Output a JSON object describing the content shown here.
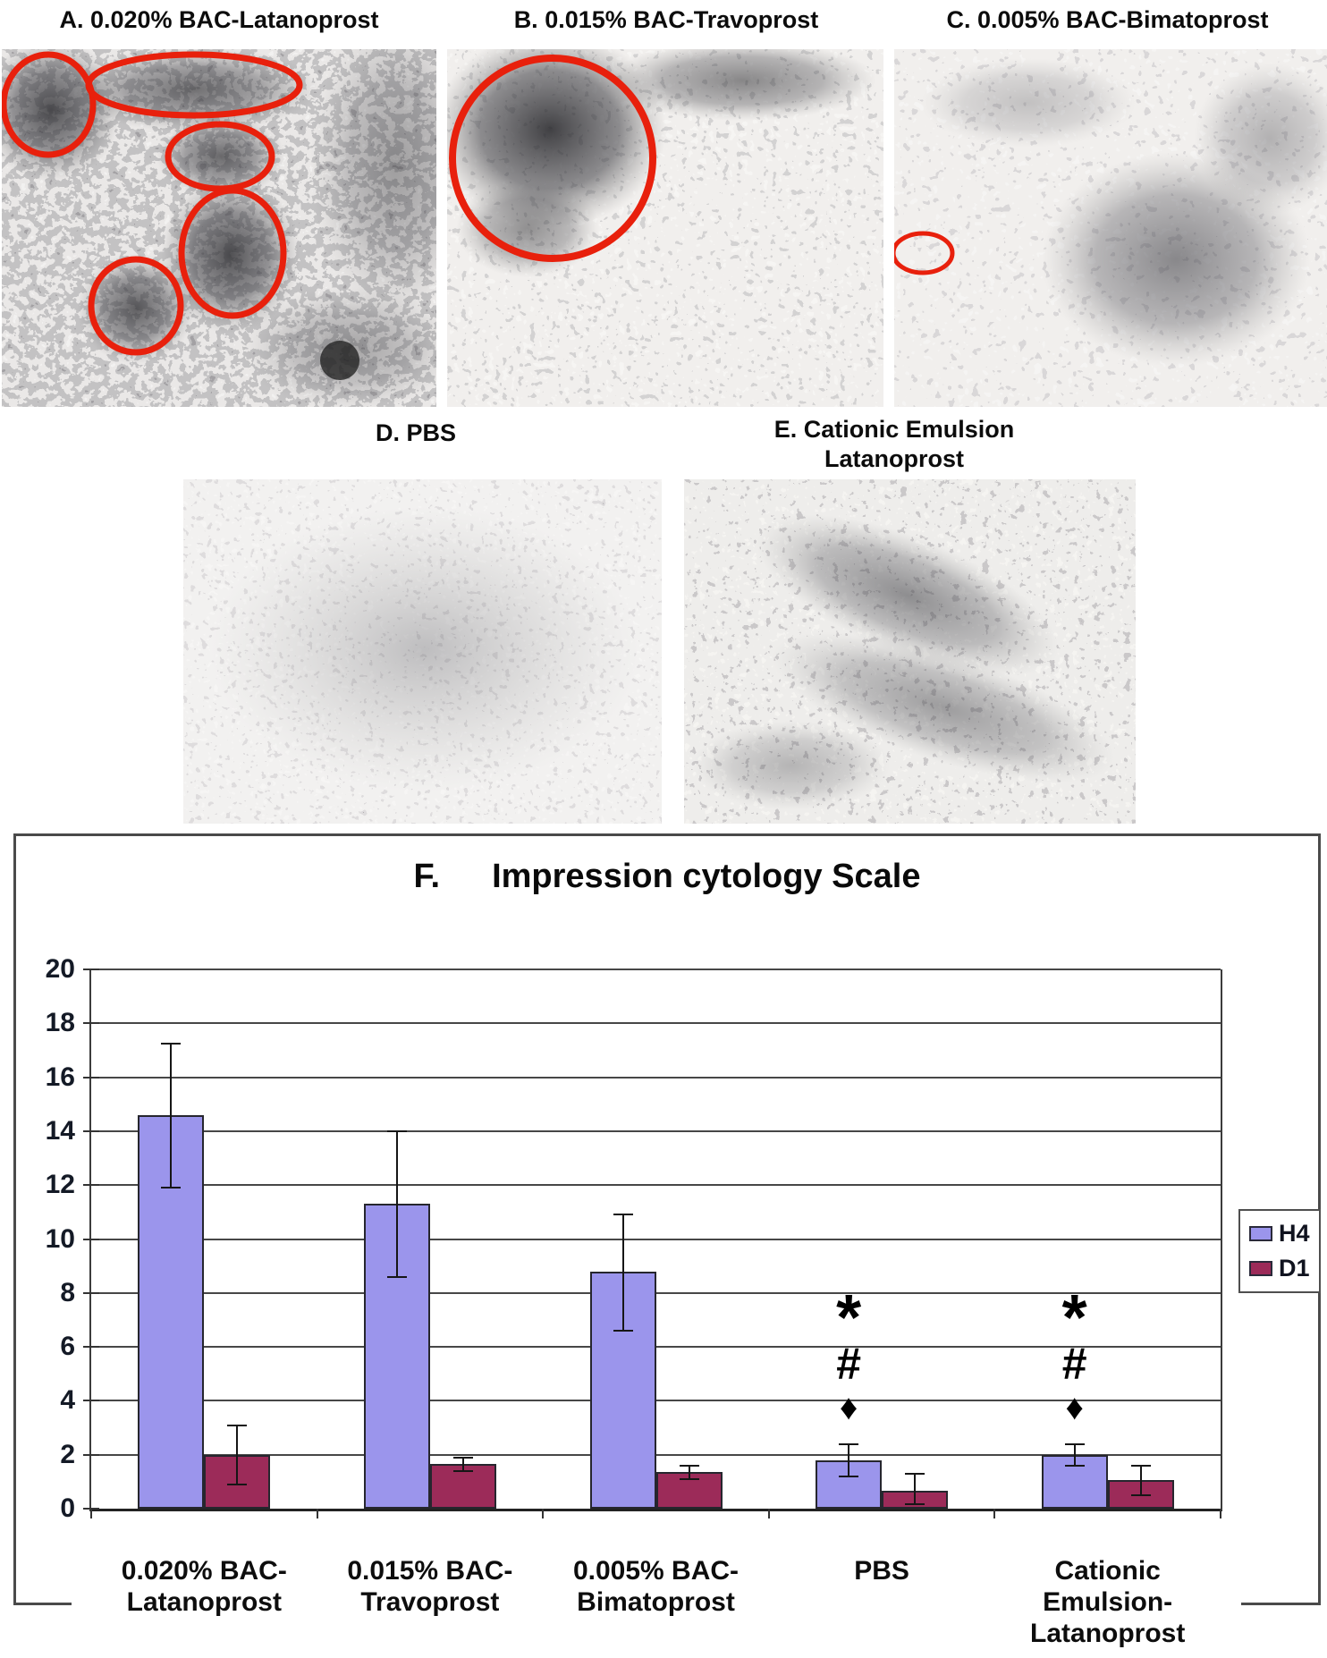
{
  "figure": {
    "panels": [
      {
        "id": "A",
        "title": "A. 0.020% BAC-Latanoprost",
        "red_circle_annotations": 5
      },
      {
        "id": "B",
        "title": "B. 0.015% BAC-Travoprost",
        "red_circle_annotations": 1
      },
      {
        "id": "C",
        "title": "C. 0.005% BAC-Bimatoprost",
        "red_circle_annotations": 1
      },
      {
        "id": "D",
        "title": "D. PBS",
        "red_circle_annotations": 0
      },
      {
        "id": "E",
        "title": "E. Cationic Emulsion\nLatanoprost",
        "red_circle_annotations": 0
      }
    ],
    "annotation_circle_color": "#E8200C"
  },
  "chart_data": {
    "type": "bar",
    "panel_label": "F.",
    "title": "Impression cytology Scale",
    "categories": [
      "0.020% BAC-\nLatanoprost",
      "0.015% BAC-\nTravoprost",
      "0.005% BAC-\nBimatoprost",
      "PBS",
      "Cationic\nEmulsion-\nLatanoprost"
    ],
    "series": [
      {
        "name": "H4",
        "color": "#9B95EC",
        "values": [
          14.6,
          11.3,
          8.8,
          1.8,
          2.0
        ],
        "error_low": [
          2.7,
          2.7,
          2.2,
          0.6,
          0.4
        ],
        "error_high": [
          2.65,
          2.7,
          2.1,
          0.6,
          0.4
        ]
      },
      {
        "name": "D1",
        "color": "#9C2B59",
        "values": [
          2.0,
          1.65,
          1.35,
          0.65,
          1.05
        ],
        "error_low": [
          1.1,
          0.25,
          0.25,
          0.5,
          0.55
        ],
        "error_high": [
          1.1,
          0.25,
          0.25,
          0.65,
          0.55
        ]
      }
    ],
    "annotations": [
      {
        "group_index": 3,
        "series": "H4",
        "symbols": [
          "*",
          "#",
          "♦"
        ]
      },
      {
        "group_index": 4,
        "series": "H4",
        "symbols": [
          "*",
          "#",
          "♦"
        ]
      }
    ],
    "ylim": [
      0,
      20
    ],
    "ytick_step": 2,
    "grid": true,
    "legend_position": "right",
    "xlabel": "",
    "ylabel": ""
  }
}
